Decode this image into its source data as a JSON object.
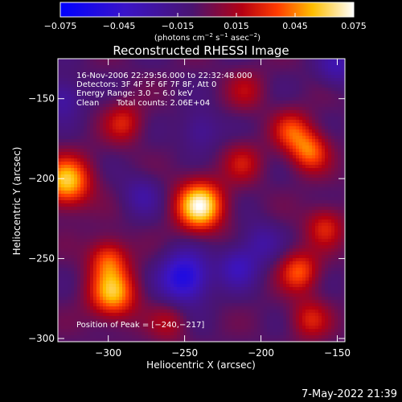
{
  "colorbar": {
    "ticks": [
      "−0.075",
      "−0.045",
      "−0.015",
      "0.015",
      "0.045",
      "0.075"
    ],
    "unit_main": "(photons cm",
    "unit_exp1": "−2",
    "unit_mid": " s",
    "unit_exp2": "−1",
    "unit_tail": " asec",
    "unit_exp3": "−2",
    "unit_close": ")",
    "range": [
      -0.075,
      0.075
    ]
  },
  "chart_data": {
    "type": "heatmap",
    "title": "Reconstructed RHESSI Image",
    "xlabel": "Heliocentric X (arcsec)",
    "ylabel": "Heliocentric Y (arcsec)",
    "xlim": [
      -333,
      -145
    ],
    "ylim": [
      -302,
      -125
    ],
    "x_ticks": [
      -300,
      -250,
      -200,
      -150
    ],
    "y_ticks": [
      -150,
      -200,
      -250,
      -300
    ],
    "x_tick_labels": [
      "−300",
      "−250",
      "−200",
      "−150"
    ],
    "y_tick_labels": [
      "−150",
      "−200",
      "−250",
      "−300"
    ],
    "colormap": "rhessi-blue-purple-red-yellow-white",
    "sources": [
      {
        "x": -240,
        "y": -217,
        "value": 0.075
      },
      {
        "x": -327,
        "y": -202,
        "value": 0.062
      },
      {
        "x": -297,
        "y": -272,
        "value": 0.058
      },
      {
        "x": -300,
        "y": -250,
        "value": 0.04
      },
      {
        "x": -290,
        "y": -165,
        "value": 0.03
      },
      {
        "x": -180,
        "y": -170,
        "value": 0.035
      },
      {
        "x": -168,
        "y": -183,
        "value": 0.045
      },
      {
        "x": -158,
        "y": -230,
        "value": 0.032
      },
      {
        "x": -175,
        "y": -258,
        "value": 0.042
      },
      {
        "x": -168,
        "y": -288,
        "value": 0.03
      },
      {
        "x": -210,
        "y": -145,
        "value": 0.02
      },
      {
        "x": -212,
        "y": -190,
        "value": 0.025
      },
      {
        "x": -260,
        "y": -290,
        "value": 0.02
      },
      {
        "x": -250,
        "y": -262,
        "value": -0.055
      },
      {
        "x": -215,
        "y": -255,
        "value": -0.03
      },
      {
        "x": -330,
        "y": -150,
        "value": -0.025
      },
      {
        "x": -278,
        "y": -210,
        "value": -0.02
      },
      {
        "x": -200,
        "y": -240,
        "value": -0.02
      },
      {
        "x": -150,
        "y": -130,
        "value": -0.025
      },
      {
        "x": -240,
        "y": -170,
        "value": -0.02
      }
    ],
    "annotations": {
      "time_range": "16-Nov-2006 22:29:56.000 to 22:32:48.000",
      "detectors": "Detectors: 3F 4F 5F 6F 7F 8F, Att 0",
      "energy": "Energy Range: 3.0 − 6.0 keV",
      "clean_label": "Clean",
      "total_counts": "Total counts: 2.06E+04",
      "peak": "Position of Peak = [−240,−217]"
    }
  },
  "footer": {
    "timestamp": "7-May-2022 21:39"
  }
}
